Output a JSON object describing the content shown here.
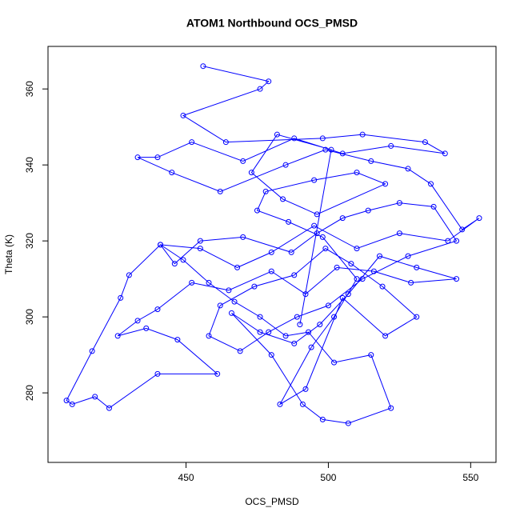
{
  "chart_data": {
    "type": "line",
    "markers": true,
    "title": "ATOM1 Northbound OCS_PMSD",
    "x_label": "OCS_PMSD",
    "y_label": "Theta (K)",
    "color": "#0000ff",
    "xlim": [
      401.5,
      558.9
    ],
    "ylim": [
      261.7,
      371.2
    ],
    "xticks": [
      450,
      500,
      550
    ],
    "yticks": [
      280,
      300,
      320,
      340,
      360
    ],
    "x": [
      456,
      479,
      476,
      449,
      464,
      498,
      512,
      534,
      541,
      522,
      505,
      488,
      470,
      452,
      440,
      433,
      445,
      462,
      485,
      499,
      515,
      528,
      536,
      547,
      553,
      542,
      525,
      510,
      495,
      480,
      468,
      455,
      441,
      430,
      427,
      417,
      408,
      410,
      418,
      423,
      440,
      461,
      447,
      436,
      426,
      433,
      440,
      452,
      465,
      480,
      492,
      503,
      516,
      529,
      545,
      531,
      518,
      507,
      497,
      488,
      476,
      466,
      480,
      491,
      498,
      507,
      522,
      515,
      502,
      493,
      485,
      476,
      467,
      458,
      449,
      441,
      446,
      455,
      470,
      487,
      496,
      505,
      514,
      525,
      537,
      545,
      528,
      512,
      500,
      489,
      479,
      469,
      458,
      462,
      474,
      488,
      499,
      508,
      519,
      531,
      520,
      505,
      492,
      483,
      494,
      502,
      510,
      498,
      486,
      475,
      478,
      495,
      510,
      520,
      496,
      484,
      473,
      482,
      501,
      490
    ],
    "values": [
      366,
      362,
      360,
      353,
      346,
      347,
      348,
      346,
      343,
      345,
      343,
      347,
      341,
      346,
      342,
      342,
      338,
      333,
      340,
      344,
      341,
      339,
      335,
      323,
      326,
      320,
      322,
      318,
      324,
      317,
      313,
      318,
      319,
      311,
      305,
      291,
      278,
      277,
      279,
      276,
      285,
      285,
      294,
      297,
      295,
      299,
      302,
      309,
      307,
      312,
      306,
      313,
      312,
      309,
      310,
      313,
      316,
      306,
      298,
      293,
      296,
      301,
      290,
      277,
      273,
      272,
      276,
      290,
      288,
      296,
      295,
      300,
      304,
      309,
      315,
      319,
      314,
      320,
      321,
      317,
      322,
      326,
      328,
      330,
      329,
      320,
      316,
      310,
      303,
      300,
      296,
      291,
      295,
      303,
      308,
      311,
      318,
      314,
      308,
      300,
      295,
      305,
      281,
      277,
      292,
      300,
      310,
      321,
      325,
      328,
      333,
      336,
      338,
      335,
      327,
      331,
      338,
      348,
      344,
      298
    ]
  }
}
